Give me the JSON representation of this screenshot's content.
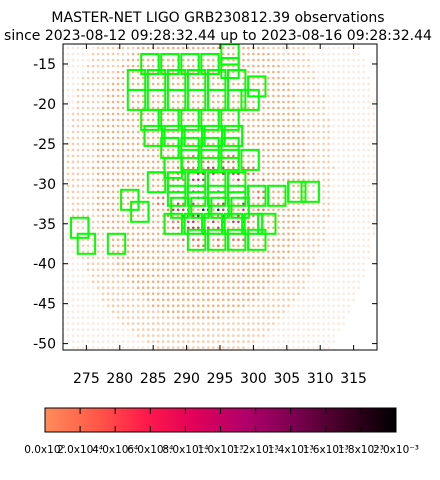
{
  "chart_data": {
    "type": "scatter",
    "title_line1": "MASTER-NET LIGO GRB230812.39 observations",
    "title_line2": "since 2023-08-12 09:28:32.44 up to 2023-08-16 09:28:32.44",
    "x_ticks": [
      "275",
      "280",
      "285",
      "290",
      "295",
      "300",
      "305",
      "310",
      "315"
    ],
    "y_ticks": [
      "-15",
      "-20",
      "-25",
      "-30",
      "-35",
      "-40",
      "-45",
      "-50"
    ],
    "xlim": [
      271.5,
      318.5
    ],
    "ylim": [
      -50.8,
      -12.5
    ],
    "grid": false,
    "probability_map": {
      "center": [
        292,
        -28
      ],
      "semi_axes": [
        20,
        24
      ],
      "core_center": [
        294,
        -32
      ],
      "colors": {
        "low": "#f7a066",
        "mid": "#ee5a3a",
        "high": "#c8103a",
        "peak": "#000000"
      }
    },
    "fields": {
      "size": [
        2.6,
        2.5
      ],
      "color": "#00ff00",
      "centers": [
        [
          284.5,
          -15
        ],
        [
          287.5,
          -15
        ],
        [
          290.5,
          -15
        ],
        [
          293.5,
          -15
        ],
        [
          296.5,
          -13.8
        ],
        [
          296.5,
          -15.5
        ],
        [
          282.5,
          -17
        ],
        [
          285.5,
          -17
        ],
        [
          288.5,
          -17
        ],
        [
          291.5,
          -17
        ],
        [
          294.5,
          -17
        ],
        [
          297.5,
          -17
        ],
        [
          300.5,
          -17.8
        ],
        [
          282.5,
          -19.5
        ],
        [
          285.5,
          -19.5
        ],
        [
          288.5,
          -19.5
        ],
        [
          291.5,
          -19.5
        ],
        [
          294.5,
          -19.5
        ],
        [
          297.5,
          -19.5
        ],
        [
          299.5,
          -19.5
        ],
        [
          284.5,
          -22
        ],
        [
          287.5,
          -22
        ],
        [
          290.5,
          -22
        ],
        [
          293.5,
          -22
        ],
        [
          296.5,
          -22
        ],
        [
          285,
          -24
        ],
        [
          288,
          -24
        ],
        [
          291,
          -24
        ],
        [
          294,
          -24
        ],
        [
          297,
          -24
        ],
        [
          287.5,
          -25.5
        ],
        [
          290.5,
          -25.5
        ],
        [
          293.5,
          -25.5
        ],
        [
          296.5,
          -25.5
        ],
        [
          288,
          -28
        ],
        [
          290.5,
          -27
        ],
        [
          293.5,
          -27
        ],
        [
          296.5,
          -27
        ],
        [
          299.5,
          -27
        ],
        [
          285.5,
          -29.8
        ],
        [
          288.5,
          -29.8
        ],
        [
          291.5,
          -29.8
        ],
        [
          294.5,
          -29.8
        ],
        [
          297.5,
          -29.8
        ],
        [
          288.5,
          -31.5
        ],
        [
          291.5,
          -31.5
        ],
        [
          294.5,
          -31.5
        ],
        [
          297.5,
          -31.5
        ],
        [
          300.5,
          -31.5
        ],
        [
          303.5,
          -31.5
        ],
        [
          306.5,
          -31
        ],
        [
          308.5,
          -31
        ],
        [
          289,
          -33
        ],
        [
          292,
          -33
        ],
        [
          295,
          -33
        ],
        [
          298,
          -33
        ],
        [
          283,
          -33.5
        ],
        [
          281.5,
          -32
        ],
        [
          288,
          -35
        ],
        [
          291,
          -35
        ],
        [
          294,
          -35
        ],
        [
          297,
          -35
        ],
        [
          300,
          -35
        ],
        [
          302,
          -35
        ],
        [
          291.5,
          -37
        ],
        [
          294.5,
          -37
        ],
        [
          297.5,
          -37
        ],
        [
          300.5,
          -37
        ],
        [
          274,
          -35.5
        ],
        [
          275,
          -37.5
        ],
        [
          279.5,
          -37.5
        ]
      ]
    },
    "colorbar": {
      "colors": [
        "#ff8c5a",
        "#ff5a48",
        "#ff1a4a",
        "#e0005a",
        "#b0006a",
        "#7a004e",
        "#3c0022",
        "#000000"
      ],
      "tick_labels": [
        "0.0x10°",
        "2.0x10⁻⁴",
        "4.0x10⁻⁴",
        "6.0x10⁻⁴",
        "8.0x10⁻⁴",
        "1.0x10⁻³",
        "1.2x10⁻³",
        "1.4x10⁻³",
        "1.6x10⁻³",
        "1.8x10⁻³",
        "2.0x10⁻³"
      ]
    }
  }
}
